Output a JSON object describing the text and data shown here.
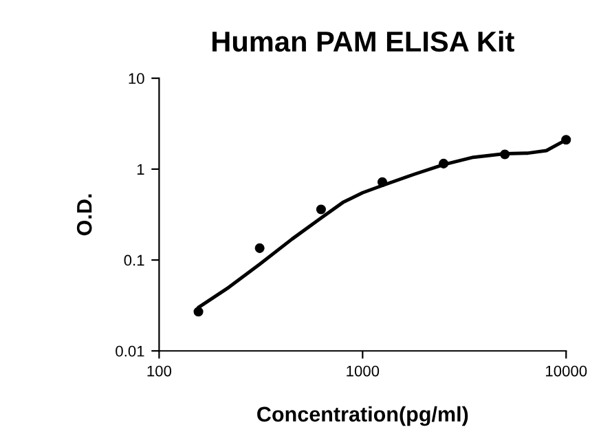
{
  "chart_data": {
    "type": "scatter",
    "title": "Human PAM ELISA Kit",
    "xlabel": "Concentration(pg/ml)",
    "ylabel": "O.D.",
    "log": "xy",
    "xlim": [
      100,
      10000
    ],
    "xticks": [
      100,
      1000,
      10000
    ],
    "ylim": [
      0.01,
      10
    ],
    "yticks": [
      0.01,
      0.1,
      1,
      10
    ],
    "grid": false,
    "series": [
      {
        "color": "#000000",
        "marker": "circle",
        "x": [
          156,
          312,
          625,
          1250,
          2500,
          5000,
          10000
        ],
        "values": [
          0.027,
          0.135,
          0.36,
          0.72,
          1.15,
          1.45,
          2.1
        ]
      },
      {
        "type": "line",
        "color": "#000000",
        "marker": "none",
        "x": [
          156,
          220,
          312,
          450,
          625,
          800,
          1000,
          1250,
          1800,
          2500,
          3500,
          5000,
          6500,
          8000,
          10000
        ],
        "values": [
          0.03,
          0.05,
          0.09,
          0.17,
          0.29,
          0.43,
          0.55,
          0.66,
          0.88,
          1.12,
          1.35,
          1.48,
          1.5,
          1.6,
          2.1
        ]
      }
    ]
  }
}
